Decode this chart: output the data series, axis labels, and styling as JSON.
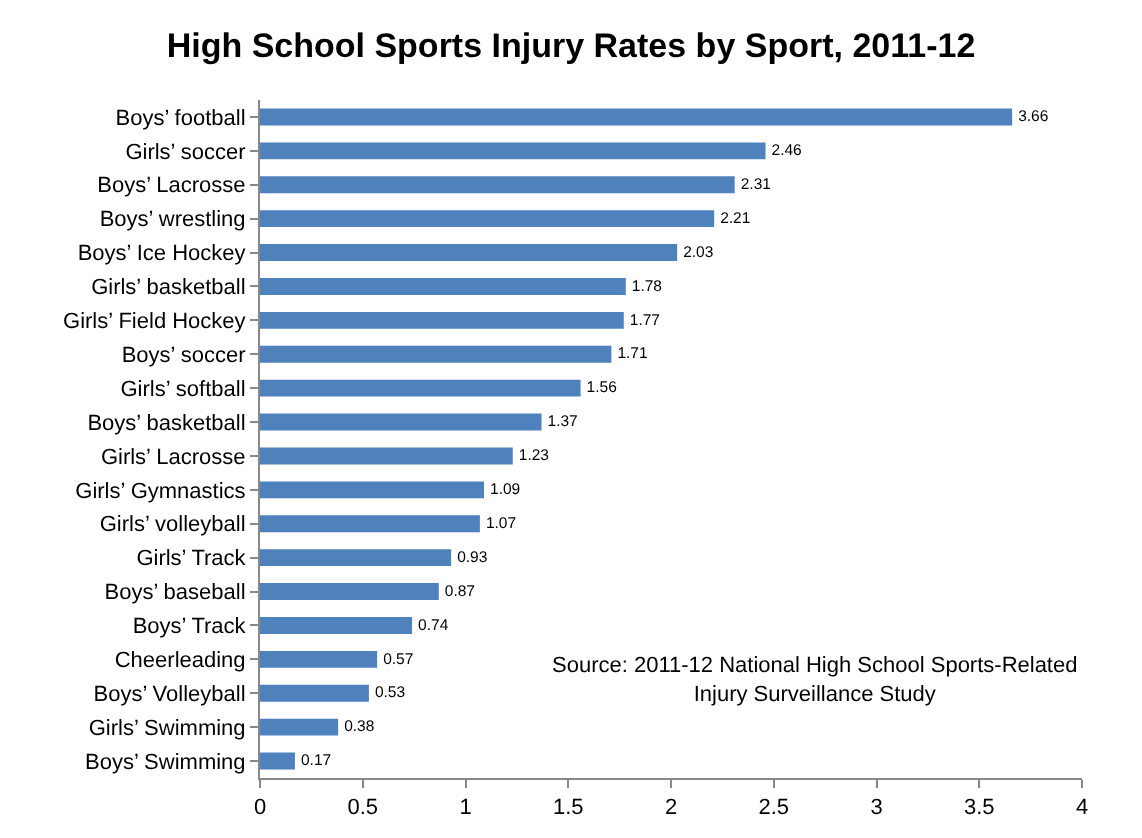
{
  "chart_data": {
    "type": "bar",
    "orientation": "horizontal",
    "title": "High School Sports Injury Rates by Sport, 2011-12",
    "categories": [
      "Boys’ football",
      "Girls’ soccer",
      "Boys’ Lacrosse",
      "Boys’ wrestling",
      "Boys’ Ice Hockey",
      "Girls’ basketball",
      "Girls’ Field Hockey",
      "Boys’ soccer",
      "Girls’ softball",
      "Boys’ basketball",
      "Girls’ Lacrosse",
      "Girls’ Gymnastics",
      "Girls’ volleyball",
      "Girls’ Track",
      "Boys’ baseball",
      "Boys’ Track",
      "Cheerleading",
      "Boys’ Volleyball",
      "Girls’ Swimming",
      "Boys’ Swimming"
    ],
    "values": [
      3.66,
      2.46,
      2.31,
      2.21,
      2.03,
      1.78,
      1.77,
      1.71,
      1.56,
      1.37,
      1.23,
      1.09,
      1.07,
      0.93,
      0.87,
      0.74,
      0.57,
      0.53,
      0.38,
      0.17
    ],
    "color": "#4f81bd",
    "data_labels": true,
    "xlim": [
      0,
      4
    ],
    "xticks": [
      0,
      0.5,
      1,
      1.5,
      2,
      2.5,
      3,
      3.5,
      4
    ],
    "grid": false,
    "annotations": [
      "Source: 2011-12 National High School Sports-Related\nInjury Surveillance Study"
    ]
  }
}
